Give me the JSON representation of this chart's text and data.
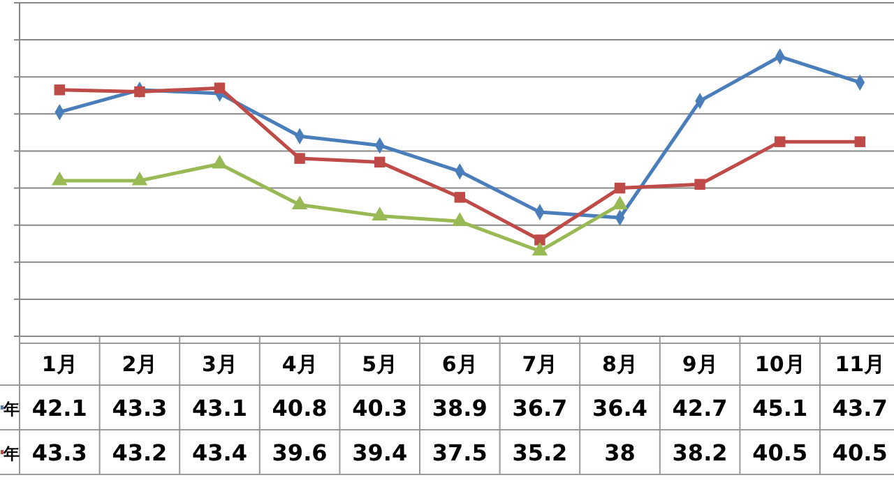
{
  "chart_data": {
    "type": "line",
    "categories": [
      "1月",
      "2月",
      "3月",
      "4月",
      "5月",
      "6月",
      "7月",
      "8月",
      "9月",
      "10月",
      "11月"
    ],
    "series": [
      {
        "name": "年",
        "color": "#4a7ebb",
        "marker": "diamond",
        "values": [
          42.1,
          43.3,
          43.1,
          40.8,
          40.3,
          38.9,
          36.7,
          36.4,
          42.7,
          45.1,
          43.7
        ],
        "value_labels": [
          "42.1",
          "43.3",
          "43.1",
          "40.8",
          "40.3",
          "38.9",
          "36.7",
          "36.4",
          "42.7",
          "45.1",
          "43.7"
        ]
      },
      {
        "name": "年",
        "color": "#be4b48",
        "marker": "square",
        "values": [
          43.3,
          43.2,
          43.4,
          39.6,
          39.4,
          37.5,
          35.2,
          38,
          38.2,
          40.5,
          40.5
        ],
        "value_labels": [
          "43.3",
          "43.2",
          "43.4",
          "39.6",
          "39.4",
          "37.5",
          "35.2",
          "38",
          "38.2",
          "40.5",
          "40.5"
        ]
      },
      {
        "color": "#98b954",
        "marker": "triangle",
        "values": [
          38.4,
          38.4,
          39.3,
          37.1,
          36.5,
          36.2,
          34.6,
          37.1,
          null,
          null,
          null
        ]
      }
    ],
    "ylim": [
      30,
      48
    ],
    "yticks": [
      {
        "value": 30,
        "label": null
      },
      {
        "value": 32,
        "label": null
      },
      {
        "value": 34,
        "label": null
      },
      {
        "value": 36,
        "label": null
      },
      {
        "value": 38,
        "label": null
      },
      {
        "value": 40,
        "label": null
      },
      {
        "value": 42,
        "label": null
      },
      {
        "value": 44,
        "label": null
      },
      {
        "value": 46,
        "label": null
      },
      {
        "value": 48,
        "label": null
      }
    ],
    "grid": "y",
    "legend": "left"
  }
}
